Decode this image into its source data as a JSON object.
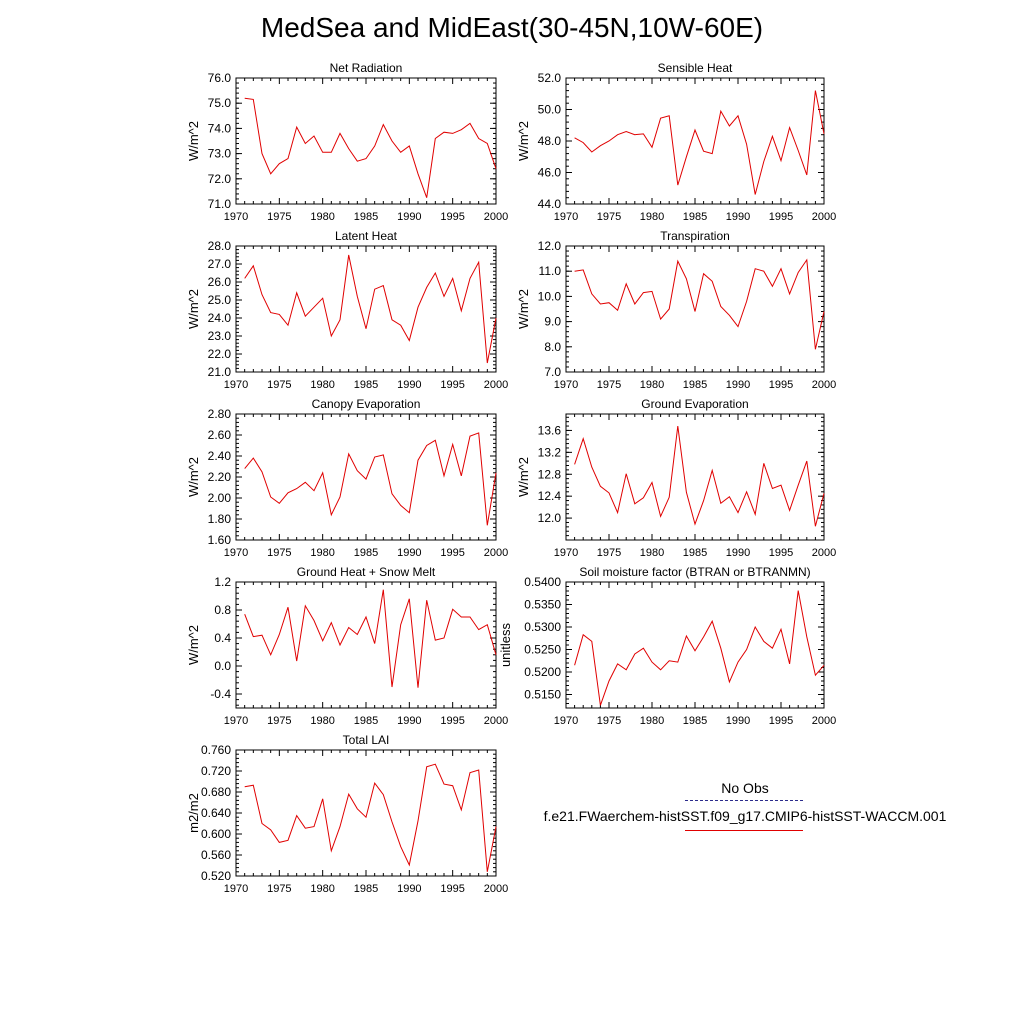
{
  "title": "MedSea and MidEast(30-45N,10W-60E)",
  "legend": {
    "obs_label": "No Obs",
    "obs_color": "#2c2c8c",
    "model_label": "f.e21.FWaerchem-histSST.f09_g17.CMIP6-histSST-WACCM.001",
    "model_color": "#e00000"
  },
  "chart_data": [
    {
      "type": "line",
      "title": "Net Radiation",
      "ylabel": "W/m^2",
      "xlim": [
        1970,
        2000
      ],
      "ylim": [
        71.0,
        76.0
      ],
      "xticks": [
        1970,
        1975,
        1980,
        1985,
        1990,
        1995,
        2000
      ],
      "yticks": [
        71.0,
        72.0,
        73.0,
        74.0,
        75.0,
        76.0
      ],
      "decimals": 1,
      "series": [
        {
          "color": "#e00000",
          "x": [
            1971,
            1972,
            1973,
            1974,
            1975,
            1976,
            1977,
            1978,
            1979,
            1980,
            1981,
            1982,
            1983,
            1984,
            1985,
            1986,
            1987,
            1988,
            1989,
            1990,
            1991,
            1992,
            1993,
            1994,
            1995,
            1996,
            1997,
            1998,
            1999,
            2000
          ],
          "y": [
            75.2,
            75.15,
            73.0,
            72.2,
            72.6,
            72.8,
            74.05,
            73.4,
            73.7,
            73.05,
            73.05,
            73.8,
            73.2,
            72.7,
            72.8,
            73.3,
            74.15,
            73.5,
            73.05,
            73.3,
            72.2,
            71.25,
            73.6,
            73.85,
            73.8,
            73.95,
            74.2,
            73.6,
            73.4,
            72.4
          ]
        }
      ]
    },
    {
      "type": "line",
      "title": "Sensible Heat",
      "ylabel": "W/m^2",
      "xlim": [
        1970,
        2000
      ],
      "ylim": [
        44.0,
        52.0
      ],
      "xticks": [
        1970,
        1975,
        1980,
        1985,
        1990,
        1995,
        2000
      ],
      "yticks": [
        44.0,
        46.0,
        48.0,
        50.0,
        52.0
      ],
      "decimals": 1,
      "series": [
        {
          "color": "#e00000",
          "x": [
            1971,
            1972,
            1973,
            1974,
            1975,
            1976,
            1977,
            1978,
            1979,
            1980,
            1981,
            1982,
            1983,
            1984,
            1985,
            1986,
            1987,
            1988,
            1989,
            1990,
            1991,
            1992,
            1993,
            1994,
            1995,
            1996,
            1997,
            1998,
            1999,
            2000
          ],
          "y": [
            48.2,
            47.9,
            47.3,
            47.7,
            48.0,
            48.4,
            48.6,
            48.4,
            48.45,
            47.6,
            49.45,
            49.6,
            45.2,
            47.0,
            48.7,
            47.35,
            47.2,
            49.9,
            48.95,
            49.6,
            47.8,
            44.6,
            46.7,
            48.3,
            46.75,
            48.85,
            47.4,
            45.85,
            51.2,
            48.45
          ]
        }
      ]
    },
    {
      "type": "line",
      "title": "Latent Heat",
      "ylabel": "W/m^2",
      "xlim": [
        1970,
        2000
      ],
      "ylim": [
        21.0,
        28.0
      ],
      "xticks": [
        1970,
        1975,
        1980,
        1985,
        1990,
        1995,
        2000
      ],
      "yticks": [
        21.0,
        22.0,
        23.0,
        24.0,
        25.0,
        26.0,
        27.0,
        28.0
      ],
      "decimals": 1,
      "series": [
        {
          "color": "#e00000",
          "x": [
            1971,
            1972,
            1973,
            1974,
            1975,
            1976,
            1977,
            1978,
            1979,
            1980,
            1981,
            1982,
            1983,
            1984,
            1985,
            1986,
            1987,
            1988,
            1989,
            1990,
            1991,
            1992,
            1993,
            1994,
            1995,
            1996,
            1997,
            1998,
            1999,
            2000
          ],
          "y": [
            26.2,
            26.9,
            25.3,
            24.3,
            24.2,
            23.6,
            25.4,
            24.1,
            24.6,
            25.1,
            23.0,
            23.9,
            27.5,
            25.2,
            23.4,
            25.6,
            25.8,
            23.9,
            23.6,
            22.75,
            24.6,
            25.7,
            26.5,
            25.2,
            26.2,
            24.4,
            26.2,
            27.1,
            21.5,
            24.0
          ]
        }
      ]
    },
    {
      "type": "line",
      "title": "Transpiration",
      "ylabel": "W/m^2",
      "xlim": [
        1970,
        2000
      ],
      "ylim": [
        7.0,
        12.0
      ],
      "xticks": [
        1970,
        1975,
        1980,
        1985,
        1990,
        1995,
        2000
      ],
      "yticks": [
        7.0,
        8.0,
        9.0,
        10.0,
        11.0,
        12.0
      ],
      "decimals": 1,
      "series": [
        {
          "color": "#e00000",
          "x": [
            1971,
            1972,
            1973,
            1974,
            1975,
            1976,
            1977,
            1978,
            1979,
            1980,
            1981,
            1982,
            1983,
            1984,
            1985,
            1986,
            1987,
            1988,
            1989,
            1990,
            1991,
            1992,
            1993,
            1994,
            1995,
            1996,
            1997,
            1998,
            1999,
            2000
          ],
          "y": [
            11.0,
            11.05,
            10.1,
            9.7,
            9.75,
            9.45,
            10.5,
            9.7,
            10.15,
            10.2,
            9.1,
            9.5,
            11.4,
            10.7,
            9.4,
            10.9,
            10.6,
            9.6,
            9.25,
            8.8,
            9.8,
            11.1,
            11.0,
            10.4,
            11.1,
            10.1,
            10.95,
            11.45,
            7.9,
            9.4
          ]
        }
      ]
    },
    {
      "type": "line",
      "title": "Canopy Evaporation",
      "ylabel": "W/m^2",
      "xlim": [
        1970,
        2000
      ],
      "ylim": [
        1.6,
        2.8
      ],
      "xticks": [
        1970,
        1975,
        1980,
        1985,
        1990,
        1995,
        2000
      ],
      "yticks": [
        1.6,
        1.8,
        2.0,
        2.2,
        2.4,
        2.6,
        2.8
      ],
      "decimals": 2,
      "series": [
        {
          "color": "#e00000",
          "x": [
            1971,
            1972,
            1973,
            1974,
            1975,
            1976,
            1977,
            1978,
            1979,
            1980,
            1981,
            1982,
            1983,
            1984,
            1985,
            1986,
            1987,
            1988,
            1989,
            1990,
            1991,
            1992,
            1993,
            1994,
            1995,
            1996,
            1997,
            1998,
            1999,
            2000
          ],
          "y": [
            2.28,
            2.38,
            2.25,
            2.01,
            1.95,
            2.05,
            2.09,
            2.15,
            2.07,
            2.24,
            1.84,
            2.01,
            2.42,
            2.26,
            2.18,
            2.39,
            2.41,
            2.04,
            1.93,
            1.86,
            2.36,
            2.5,
            2.55,
            2.21,
            2.51,
            2.21,
            2.59,
            2.62,
            1.74,
            2.24
          ]
        }
      ]
    },
    {
      "type": "line",
      "title": "Ground Evaporation",
      "ylabel": "W/m^2",
      "xlim": [
        1970,
        2000
      ],
      "ylim": [
        11.6,
        13.9
      ],
      "xticks": [
        1970,
        1975,
        1980,
        1985,
        1990,
        1995,
        2000
      ],
      "yticks": [
        12.0,
        12.4,
        12.8,
        13.2,
        13.6
      ],
      "decimals": 1,
      "series": [
        {
          "color": "#e00000",
          "x": [
            1971,
            1972,
            1973,
            1974,
            1975,
            1976,
            1977,
            1978,
            1979,
            1980,
            1981,
            1982,
            1983,
            1984,
            1985,
            1986,
            1987,
            1988,
            1989,
            1990,
            1991,
            1992,
            1993,
            1994,
            1995,
            1996,
            1997,
            1998,
            1999,
            2000
          ],
          "y": [
            12.98,
            13.45,
            12.93,
            12.58,
            12.46,
            12.1,
            12.81,
            12.26,
            12.37,
            12.65,
            12.03,
            12.38,
            13.68,
            12.47,
            11.89,
            12.32,
            12.87,
            12.27,
            12.39,
            12.1,
            12.48,
            12.07,
            13.0,
            12.54,
            12.6,
            12.14,
            12.6,
            13.04,
            11.85,
            12.45
          ]
        }
      ]
    },
    {
      "type": "line",
      "title": "Ground Heat + Snow Melt",
      "ylabel": "W/m^2",
      "xlim": [
        1970,
        2000
      ],
      "ylim": [
        -0.6,
        1.2
      ],
      "xticks": [
        1970,
        1975,
        1980,
        1985,
        1990,
        1995,
        2000
      ],
      "yticks": [
        -0.4,
        0.0,
        0.4,
        0.8,
        1.2
      ],
      "decimals": 1,
      "series": [
        {
          "color": "#e00000",
          "x": [
            1971,
            1972,
            1973,
            1974,
            1975,
            1976,
            1977,
            1978,
            1979,
            1980,
            1981,
            1982,
            1983,
            1984,
            1985,
            1986,
            1987,
            1988,
            1989,
            1990,
            1991,
            1992,
            1993,
            1994,
            1995,
            1996,
            1997,
            1998,
            1999,
            2000
          ],
          "y": [
            0.74,
            0.42,
            0.44,
            0.16,
            0.45,
            0.84,
            0.07,
            0.86,
            0.65,
            0.36,
            0.62,
            0.3,
            0.55,
            0.45,
            0.7,
            0.32,
            1.09,
            -0.3,
            0.59,
            0.96,
            -0.31,
            0.94,
            0.37,
            0.4,
            0.81,
            0.7,
            0.7,
            0.52,
            0.59,
            0.16
          ]
        }
      ]
    },
    {
      "type": "line",
      "title": "Soil moisture factor (BTRAN or BTRANMN)",
      "ylabel": "unitless",
      "xlim": [
        1970,
        2000
      ],
      "ylim": [
        0.512,
        0.54
      ],
      "xticks": [
        1970,
        1975,
        1980,
        1985,
        1990,
        1995,
        2000
      ],
      "yticks": [
        0.515,
        0.52,
        0.525,
        0.53,
        0.535,
        0.54
      ],
      "decimals": 4,
      "series": [
        {
          "color": "#e00000",
          "x": [
            1971,
            1972,
            1973,
            1974,
            1975,
            1976,
            1977,
            1978,
            1979,
            1980,
            1981,
            1982,
            1983,
            1984,
            1985,
            1986,
            1987,
            1988,
            1989,
            1990,
            1991,
            1992,
            1993,
            1994,
            1995,
            1996,
            1997,
            1998,
            1999,
            2000
          ],
          "y": [
            0.5215,
            0.5283,
            0.5268,
            0.5126,
            0.518,
            0.5218,
            0.5205,
            0.524,
            0.5253,
            0.5222,
            0.5205,
            0.5225,
            0.5222,
            0.528,
            0.5247,
            0.5278,
            0.5313,
            0.5253,
            0.5178,
            0.5222,
            0.525,
            0.53,
            0.5268,
            0.5253,
            0.5295,
            0.5218,
            0.5381,
            0.5278,
            0.5193,
            0.5215
          ]
        }
      ]
    },
    {
      "type": "line",
      "title": "Total LAI",
      "ylabel": "m2/m2",
      "xlim": [
        1970,
        2000
      ],
      "ylim": [
        0.52,
        0.76
      ],
      "xticks": [
        1970,
        1975,
        1980,
        1985,
        1990,
        1995,
        2000
      ],
      "yticks": [
        0.52,
        0.56,
        0.6,
        0.64,
        0.68,
        0.72,
        0.76
      ],
      "decimals": 3,
      "series": [
        {
          "color": "#e00000",
          "x": [
            1971,
            1972,
            1973,
            1974,
            1975,
            1976,
            1977,
            1978,
            1979,
            1980,
            1981,
            1982,
            1983,
            1984,
            1985,
            1986,
            1987,
            1988,
            1989,
            1990,
            1991,
            1992,
            1993,
            1994,
            1995,
            1996,
            1997,
            1998,
            1999,
            2000
          ],
          "y": [
            0.69,
            0.693,
            0.62,
            0.608,
            0.584,
            0.588,
            0.635,
            0.611,
            0.614,
            0.667,
            0.568,
            0.614,
            0.676,
            0.648,
            0.632,
            0.697,
            0.675,
            0.623,
            0.576,
            0.541,
            0.625,
            0.728,
            0.733,
            0.695,
            0.692,
            0.646,
            0.717,
            0.722,
            0.528,
            0.614
          ]
        }
      ]
    }
  ]
}
